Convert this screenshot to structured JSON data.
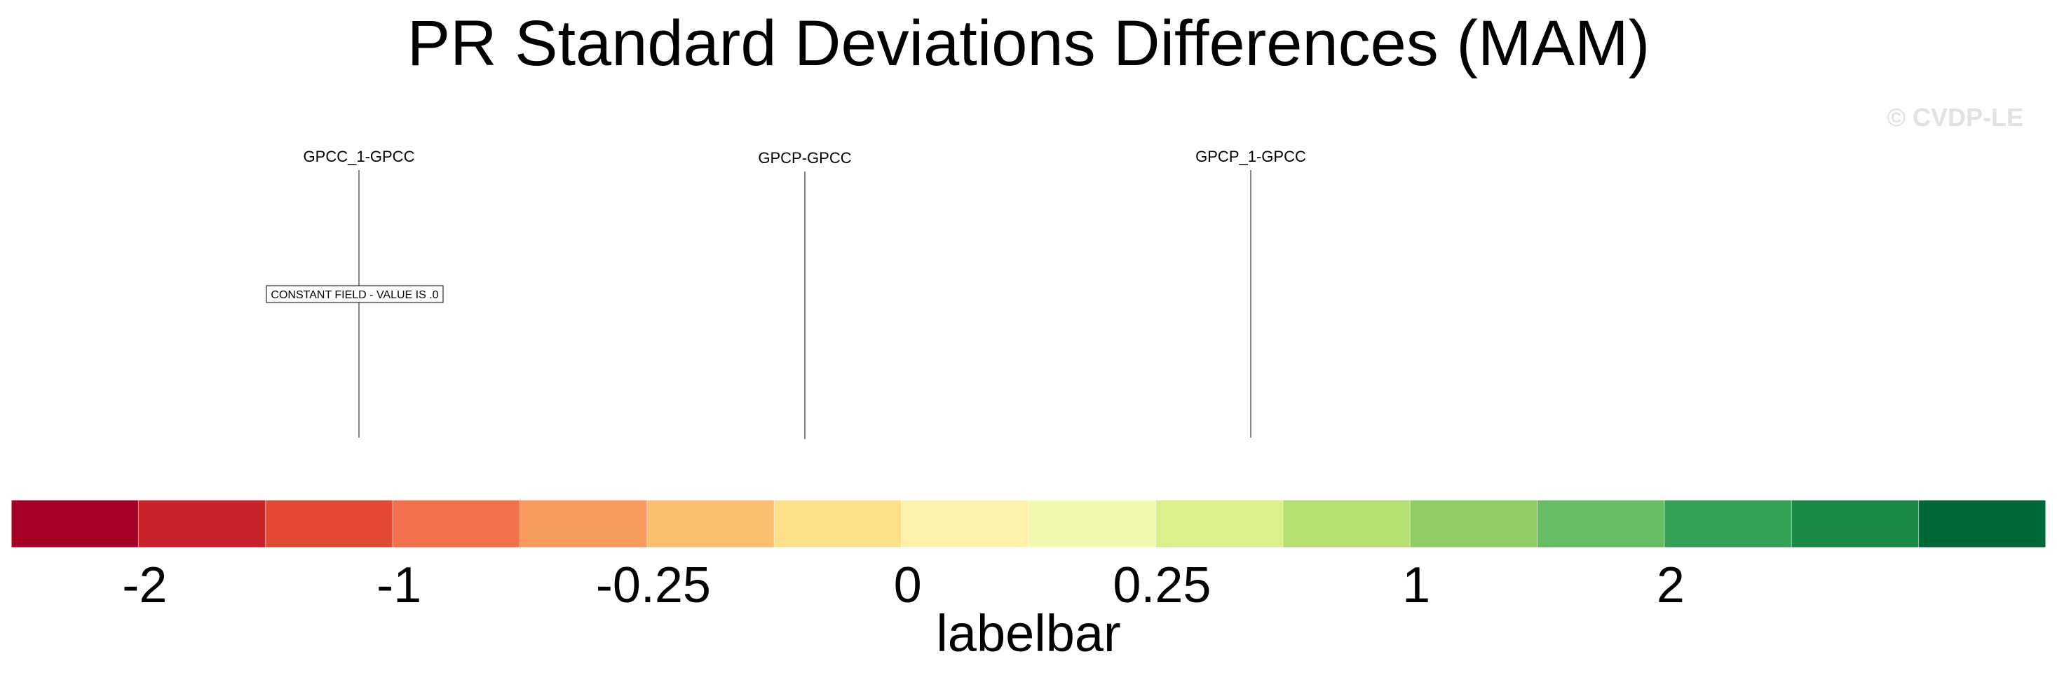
{
  "chart_data": {
    "type": "heatmap",
    "title": "PR Standard Deviations Differences (MAM)",
    "watermark": "© CVDP-LE",
    "panels": [
      {
        "title": "GPCC_1-GPCC",
        "note": "CONSTANT FIELD - VALUE IS .0",
        "filled": false
      },
      {
        "title": "GPCP-GPCC",
        "note": "",
        "filled": true
      },
      {
        "title": "GPCP_1-GPCC",
        "note": "",
        "filled": true
      }
    ],
    "colorbar": {
      "label": "labelbar",
      "colors": [
        "#a50026",
        "#c92228",
        "#e34a33",
        "#f4704a",
        "#f99b5d",
        "#fdbe70",
        "#fee08b",
        "#fff1aa",
        "#f2f8ad",
        "#d9ef8b",
        "#b3df70",
        "#8fcc63",
        "#66bd63",
        "#34a155",
        "#1a8a49",
        "#006837"
      ],
      "tick_labels": [
        "-2",
        "-1",
        "-0.25",
        "0",
        "0.25",
        "1",
        "2"
      ],
      "tick_boundaries": [
        2,
        4,
        6,
        8,
        10,
        12,
        14
      ]
    }
  }
}
